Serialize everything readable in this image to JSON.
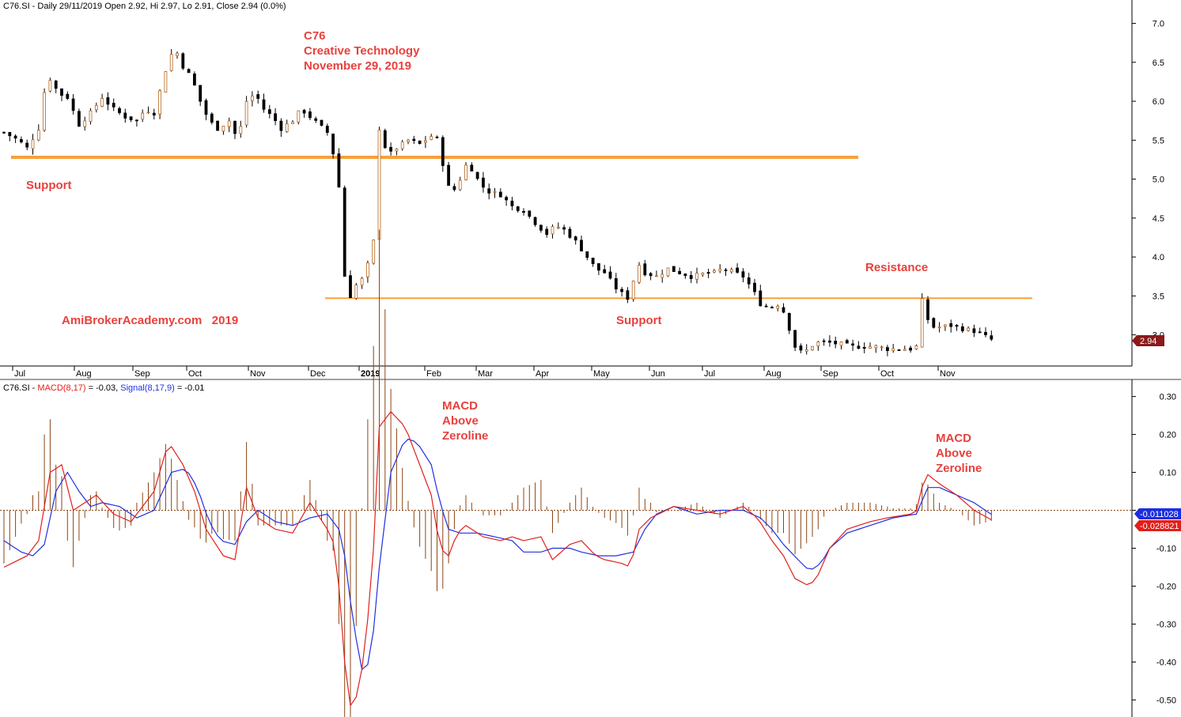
{
  "header": {
    "price_title": "C76.SI - Daily 29/11/2019 Open 2.92, Hi 2.97, Lo 2.91, Close 2.94 (0.0%)",
    "macd_symbol": "C76.SI - ",
    "macd_name": "MACD(8,17)",
    "macd_value": " = -0.03, ",
    "signal_name": "Signal(8,17,9)",
    "signal_value": " = -0.01"
  },
  "annotations": {
    "title_lines": [
      "C76",
      "Creative Technology",
      "November 29, 2019"
    ],
    "support_left": "Support",
    "support_right": "Support",
    "resistance": "Resistance",
    "watermark": "AmiBrokerAcademy.com   2019",
    "macd_above_1": [
      "MACD",
      "Above",
      "Zeroline"
    ],
    "macd_above_2": [
      "MACD",
      "Above",
      "Zeroline"
    ]
  },
  "last_price_label": "2.94",
  "macd_last_label": "-0.028821",
  "signal_last_label": "-0.011028",
  "colors": {
    "annotation": "#e8413c",
    "support_line": "#f7a13c",
    "macd": "#e0201c",
    "signal": "#2030e0",
    "histogram": "#8b4513",
    "price_badge": "#8b1a1a"
  },
  "chart_data": [
    {
      "type": "candlestick",
      "title": "C76.SI - Daily 29/11/2019",
      "x_tick_labels": [
        "Jul",
        "Aug",
        "Sep",
        "Oct",
        "Nov",
        "Dec",
        "2019",
        "Feb",
        "Mar",
        "Apr",
        "May",
        "Jun",
        "Jul",
        "Aug",
        "Sep",
        "Oct",
        "Nov"
      ],
      "y_ticks": [
        3.0,
        3.5,
        4.0,
        4.5,
        5.0,
        5.5,
        6.0,
        6.5,
        7.0
      ],
      "ylim": [
        2.6,
        7.3
      ],
      "support_lines": [
        5.28,
        3.47
      ],
      "price_path": [
        [
          0,
          5.6
        ],
        [
          2.5,
          5.5
        ],
        [
          4,
          5.4
        ],
        [
          6,
          5.65
        ],
        [
          7.5,
          6.35
        ],
        [
          9.5,
          6.1
        ],
        [
          11,
          6.05
        ],
        [
          13,
          5.7
        ],
        [
          15,
          5.85
        ],
        [
          17,
          6.05
        ],
        [
          19,
          5.9
        ],
        [
          21,
          5.8
        ],
        [
          23,
          5.75
        ],
        [
          24.5,
          5.9
        ],
        [
          26,
          5.85
        ],
        [
          28,
          6.4
        ],
        [
          29.5,
          6.7
        ],
        [
          31,
          6.45
        ],
        [
          32.5,
          6.3
        ],
        [
          34,
          6.0
        ],
        [
          35.5,
          5.75
        ],
        [
          37,
          5.65
        ],
        [
          39,
          5.75
        ],
        [
          40.5,
          5.5
        ],
        [
          42,
          6.0
        ],
        [
          43.5,
          6.1
        ],
        [
          45,
          5.9
        ],
        [
          46.5,
          5.8
        ],
        [
          48,
          5.65
        ],
        [
          50,
          5.75
        ],
        [
          51.5,
          5.9
        ],
        [
          53,
          5.8
        ],
        [
          54.5,
          5.7
        ],
        [
          56,
          5.6
        ],
        [
          57.5,
          5.2
        ],
        [
          58,
          4.9
        ],
        [
          58.8,
          3.9
        ],
        [
          59.5,
          3.4
        ],
        [
          60.5,
          3.6
        ],
        [
          62.5,
          3.75
        ],
        [
          64,
          4.2
        ],
        [
          65,
          5.65
        ],
        [
          66.5,
          5.3
        ],
        [
          68,
          5.4
        ],
        [
          70,
          5.5
        ],
        [
          72,
          5.45
        ],
        [
          74,
          5.55
        ],
        [
          75.5,
          5.5
        ],
        [
          76,
          5.2
        ],
        [
          77,
          4.9
        ],
        [
          78.5,
          4.85
        ],
        [
          79.5,
          5.15
        ],
        [
          80.5,
          5.2
        ],
        [
          82,
          5.0
        ],
        [
          83.5,
          4.85
        ],
        [
          86,
          4.8
        ],
        [
          88,
          4.65
        ],
        [
          90,
          4.6
        ],
        [
          92.5,
          4.4
        ],
        [
          94,
          4.3
        ],
        [
          95.5,
          4.4
        ],
        [
          97,
          4.35
        ],
        [
          99,
          4.2
        ],
        [
          101,
          4.0
        ],
        [
          102.5,
          3.85
        ],
        [
          104,
          3.8
        ],
        [
          106,
          3.6
        ],
        [
          107.5,
          3.5
        ],
        [
          108.5,
          3.45
        ],
        [
          109.5,
          3.95
        ],
        [
          111,
          3.8
        ],
        [
          113,
          3.75
        ],
        [
          115,
          3.85
        ],
        [
          117,
          3.8
        ],
        [
          119,
          3.75
        ],
        [
          121,
          3.78
        ],
        [
          123,
          3.8
        ],
        [
          124.5,
          3.85
        ],
        [
          126.5,
          3.8
        ],
        [
          128,
          3.75
        ],
        [
          129.5,
          3.6
        ],
        [
          131,
          3.4
        ],
        [
          132.5,
          3.35
        ],
        [
          134.5,
          3.4
        ],
        [
          135.5,
          3.2
        ],
        [
          137,
          2.85
        ],
        [
          138.5,
          2.75
        ],
        [
          139.5,
          2.85
        ],
        [
          141,
          2.9
        ],
        [
          143,
          2.9
        ],
        [
          145,
          2.88
        ],
        [
          147,
          2.85
        ],
        [
          149,
          2.85
        ],
        [
          151,
          2.85
        ],
        [
          153,
          2.82
        ],
        [
          155,
          2.82
        ],
        [
          157,
          2.82
        ],
        [
          158,
          2.85
        ],
        [
          158.6,
          3.55
        ],
        [
          159.5,
          3.3
        ],
        [
          160.5,
          3.1
        ],
        [
          162,
          3.1
        ],
        [
          164,
          3.12
        ],
        [
          166,
          3.08
        ],
        [
          168,
          3.05
        ],
        [
          169.5,
          3.0
        ],
        [
          171,
          2.94
        ]
      ],
      "last_close": 2.94
    },
    {
      "type": "line",
      "title": "MACD(8,17) / Signal(8,17,9)",
      "y_ticks": [
        -0.5,
        -0.4,
        -0.3,
        -0.2,
        -0.1,
        0.0,
        0.1,
        0.2,
        0.3
      ],
      "ylim": [
        -0.545,
        0.345
      ],
      "macd_path": [
        [
          0,
          -0.15
        ],
        [
          4,
          -0.12
        ],
        [
          6,
          -0.08
        ],
        [
          8,
          0.1
        ],
        [
          10,
          0.12
        ],
        [
          12,
          0.0
        ],
        [
          14,
          0.02
        ],
        [
          16,
          0.04
        ],
        [
          19,
          -0.01
        ],
        [
          22,
          -0.03
        ],
        [
          26,
          0.05
        ],
        [
          28.5,
          0.18
        ],
        [
          31,
          0.12
        ],
        [
          33,
          0.05
        ],
        [
          35,
          -0.05
        ],
        [
          38,
          -0.12
        ],
        [
          40,
          -0.13
        ],
        [
          42,
          0.06
        ],
        [
          44,
          -0.02
        ],
        [
          47,
          -0.05
        ],
        [
          50,
          -0.06
        ],
        [
          53,
          0.02
        ],
        [
          56,
          -0.05
        ],
        [
          57.5,
          -0.1
        ],
        [
          58.5,
          -0.3
        ],
        [
          59.5,
          -0.5
        ],
        [
          60.5,
          -0.53
        ],
        [
          62.5,
          -0.38
        ],
        [
          64,
          -0.1
        ],
        [
          65,
          0.22
        ],
        [
          67,
          0.26
        ],
        [
          69.5,
          0.22
        ],
        [
          72,
          0.12
        ],
        [
          74,
          0.04
        ],
        [
          75.5,
          -0.1
        ],
        [
          77,
          -0.12
        ],
        [
          78.5,
          -0.06
        ],
        [
          80,
          -0.04
        ],
        [
          83,
          -0.07
        ],
        [
          86,
          -0.08
        ],
        [
          88,
          -0.07
        ],
        [
          90,
          -0.08
        ],
        [
          93,
          -0.07
        ],
        [
          95,
          -0.13
        ],
        [
          98,
          -0.09
        ],
        [
          100,
          -0.08
        ],
        [
          102.5,
          -0.12
        ],
        [
          104,
          -0.13
        ],
        [
          107,
          -0.14
        ],
        [
          108.5,
          -0.15
        ],
        [
          110,
          -0.05
        ],
        [
          112,
          -0.02
        ],
        [
          116,
          0.01
        ],
        [
          120,
          0.0
        ],
        [
          124,
          -0.01
        ],
        [
          128,
          0.01
        ],
        [
          130.5,
          -0.02
        ],
        [
          133,
          -0.08
        ],
        [
          135,
          -0.12
        ],
        [
          137,
          -0.18
        ],
        [
          139.5,
          -0.2
        ],
        [
          141,
          -0.17
        ],
        [
          143,
          -0.1
        ],
        [
          146,
          -0.05
        ],
        [
          150,
          -0.03
        ],
        [
          153,
          -0.02
        ],
        [
          157,
          -0.01
        ],
        [
          158.2,
          0.0
        ],
        [
          159.5,
          0.1
        ],
        [
          162,
          0.07
        ],
        [
          165,
          0.04
        ],
        [
          168,
          0.0
        ],
        [
          171,
          -0.025
        ]
      ],
      "signal_path": [
        [
          0,
          -0.08
        ],
        [
          3,
          -0.11
        ],
        [
          5,
          -0.12
        ],
        [
          7,
          -0.09
        ],
        [
          9,
          0.05
        ],
        [
          11,
          0.1
        ],
        [
          13,
          0.05
        ],
        [
          15,
          0.01
        ],
        [
          17,
          0.02
        ],
        [
          20,
          0.01
        ],
        [
          23,
          -0.02
        ],
        [
          26,
          0.0
        ],
        [
          29,
          0.1
        ],
        [
          31.5,
          0.11
        ],
        [
          33.5,
          0.06
        ],
        [
          35.5,
          -0.03
        ],
        [
          37.5,
          -0.08
        ],
        [
          40,
          -0.09
        ],
        [
          42,
          -0.03
        ],
        [
          44,
          0.0
        ],
        [
          47,
          -0.03
        ],
        [
          50,
          -0.04
        ],
        [
          53,
          -0.02
        ],
        [
          56,
          -0.01
        ],
        [
          58,
          -0.05
        ],
        [
          59,
          -0.12
        ],
        [
          60.5,
          -0.3
        ],
        [
          62,
          -0.42
        ],
        [
          63.5,
          -0.4
        ],
        [
          65,
          -0.15
        ],
        [
          67,
          0.1
        ],
        [
          69.5,
          0.19
        ],
        [
          71.5,
          0.18
        ],
        [
          74,
          0.12
        ],
        [
          75.5,
          0.02
        ],
        [
          77,
          -0.05
        ],
        [
          79,
          -0.06
        ],
        [
          82,
          -0.06
        ],
        [
          85,
          -0.07
        ],
        [
          88,
          -0.08
        ],
        [
          90,
          -0.11
        ],
        [
          93,
          -0.11
        ],
        [
          95,
          -0.1
        ],
        [
          98,
          -0.1
        ],
        [
          100,
          -0.11
        ],
        [
          103,
          -0.12
        ],
        [
          106,
          -0.12
        ],
        [
          109,
          -0.11
        ],
        [
          111,
          -0.05
        ],
        [
          113,
          -0.01
        ],
        [
          116,
          0.01
        ],
        [
          120,
          -0.01
        ],
        [
          124,
          0.0
        ],
        [
          128,
          0.0
        ],
        [
          131,
          -0.02
        ],
        [
          133,
          -0.05
        ],
        [
          135,
          -0.09
        ],
        [
          137.5,
          -0.13
        ],
        [
          139.5,
          -0.16
        ],
        [
          141.5,
          -0.14
        ],
        [
          143,
          -0.1
        ],
        [
          146,
          -0.06
        ],
        [
          150,
          -0.04
        ],
        [
          154,
          -0.02
        ],
        [
          158,
          -0.01
        ],
        [
          160,
          0.06
        ],
        [
          162,
          0.06
        ],
        [
          165,
          0.04
        ],
        [
          168,
          0.02
        ],
        [
          171,
          -0.011
        ]
      ],
      "macd_last": -0.028821,
      "signal_last": -0.011028
    }
  ]
}
